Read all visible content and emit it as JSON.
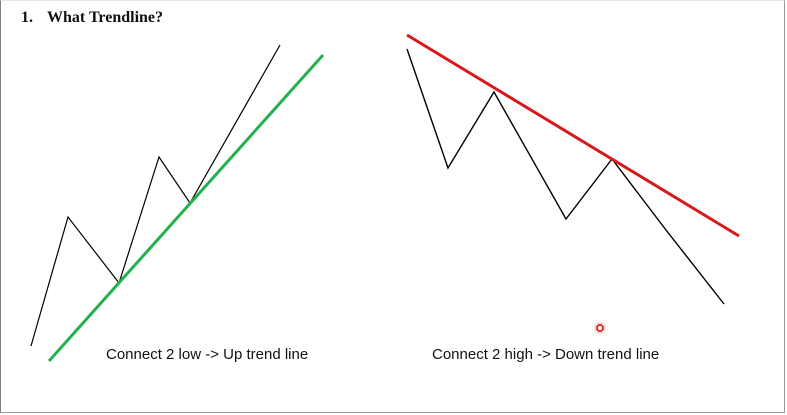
{
  "heading": {
    "number": "1.",
    "title": "What Trendline?"
  },
  "uptrend": {
    "caption": "Connect 2 low -> Up trend line",
    "line_color": "#22b14c",
    "price_color": "#000000"
  },
  "downtrend": {
    "caption": "Connect 2 high -> Down trend line",
    "line_color": "#d7191c",
    "price_color": "#000000"
  },
  "cursor": {
    "icon": "cursor-dot-icon",
    "color": "#e02020"
  }
}
